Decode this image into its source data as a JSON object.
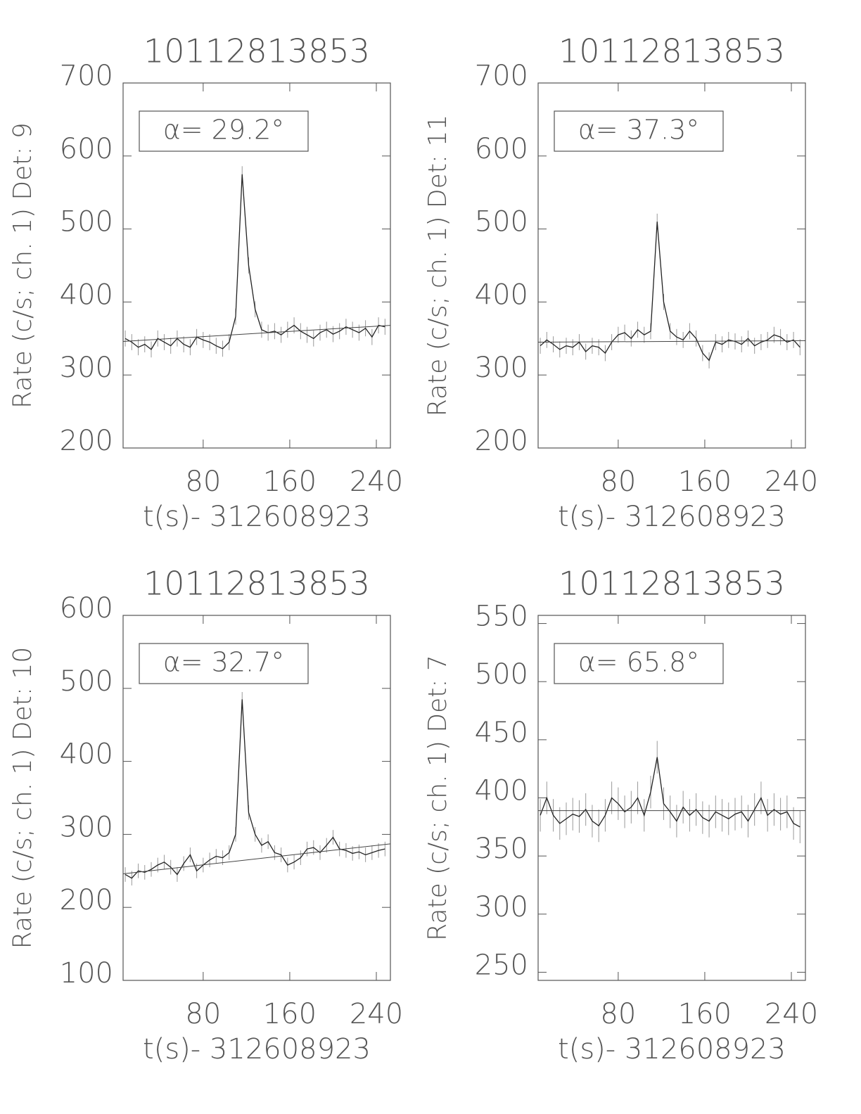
{
  "chart_data": [
    {
      "type": "line",
      "title": "10112813853",
      "ylabel": "Rate (c/s; ch. 1) Det: 9",
      "xlabel": "t(s)- 312608923",
      "annotation": "α= 29.2°",
      "x": [
        8,
        14,
        20,
        26,
        32,
        38,
        44,
        50,
        56,
        62,
        68,
        74,
        80,
        86,
        92,
        98,
        104,
        110,
        116,
        122,
        128,
        134,
        140,
        146,
        152,
        158,
        164,
        170,
        176,
        182,
        188,
        194,
        200,
        206,
        212,
        218,
        224,
        230,
        236,
        242,
        248
      ],
      "values": [
        350,
        345,
        338,
        342,
        335,
        350,
        345,
        340,
        350,
        342,
        338,
        352,
        348,
        345,
        340,
        336,
        345,
        380,
        575,
        450,
        390,
        362,
        358,
        360,
        355,
        362,
        368,
        360,
        355,
        350,
        358,
        362,
        356,
        360,
        366,
        362,
        358,
        364,
        352,
        368,
        366
      ],
      "error": 11,
      "fit": {
        "x": [
          6,
          253
        ],
        "values": [
          346,
          368
        ]
      },
      "color": "#222222",
      "xlim": [
        6,
        253
      ],
      "xticks": [
        80,
        160,
        240
      ],
      "ylim": [
        200,
        700
      ],
      "yticks": [
        200,
        300,
        400,
        500,
        600,
        700
      ]
    },
    {
      "type": "line",
      "title": "10112813853",
      "ylabel": "Rate (c/s; ch. 1) Det: 11",
      "xlabel": "t(s)- 312608923",
      "annotation": "α= 37.3°",
      "x": [
        8,
        14,
        20,
        26,
        32,
        38,
        44,
        50,
        56,
        62,
        68,
        74,
        80,
        86,
        92,
        98,
        104,
        110,
        116,
        122,
        128,
        134,
        140,
        146,
        152,
        158,
        164,
        170,
        176,
        182,
        188,
        194,
        200,
        206,
        212,
        218,
        224,
        230,
        236,
        242,
        248
      ],
      "values": [
        340,
        348,
        342,
        335,
        340,
        338,
        345,
        332,
        340,
        338,
        330,
        345,
        355,
        358,
        350,
        362,
        355,
        360,
        510,
        400,
        360,
        352,
        348,
        360,
        350,
        330,
        320,
        345,
        342,
        348,
        346,
        342,
        350,
        340,
        345,
        348,
        355,
        352,
        345,
        348,
        338
      ],
      "error": 11,
      "fit": {
        "x": [
          6,
          253
        ],
        "values": [
          345,
          347
        ]
      },
      "color": "#222222",
      "xlim": [
        6,
        253
      ],
      "xticks": [
        80,
        160,
        240
      ],
      "ylim": [
        200,
        700
      ],
      "yticks": [
        200,
        300,
        400,
        500,
        600,
        700
      ]
    },
    {
      "type": "line",
      "title": "10112813853",
      "ylabel": "Rate (c/s; ch. 1) Det: 10",
      "xlabel": "t(s)- 312608923",
      "annotation": "α= 32.7°",
      "x": [
        8,
        14,
        20,
        26,
        32,
        38,
        44,
        50,
        56,
        62,
        68,
        74,
        80,
        86,
        92,
        98,
        104,
        110,
        116,
        122,
        128,
        134,
        140,
        146,
        152,
        158,
        164,
        170,
        176,
        182,
        188,
        194,
        200,
        206,
        212,
        218,
        224,
        230,
        236,
        242,
        248
      ],
      "values": [
        245,
        240,
        250,
        248,
        252,
        258,
        262,
        255,
        245,
        260,
        272,
        250,
        258,
        265,
        270,
        268,
        275,
        300,
        485,
        330,
        300,
        285,
        290,
        275,
        272,
        258,
        262,
        268,
        280,
        282,
        275,
        285,
        296,
        280,
        278,
        274,
        276,
        272,
        275,
        278,
        280
      ],
      "error": 10,
      "fit": {
        "x": [
          6,
          253
        ],
        "values": [
          246,
          287
        ]
      },
      "color": "#222222",
      "xlim": [
        6,
        253
      ],
      "xticks": [
        80,
        160,
        240
      ],
      "ylim": [
        100,
        600
      ],
      "yticks": [
        100,
        200,
        300,
        400,
        500,
        600
      ]
    },
    {
      "type": "line",
      "title": "10112813853",
      "ylabel": "Rate (c/s; ch. 1) Det: 7",
      "xlabel": "t(s)- 312608923",
      "annotation": "α= 65.8°",
      "x": [
        8,
        14,
        20,
        26,
        32,
        38,
        44,
        50,
        56,
        62,
        68,
        74,
        80,
        86,
        92,
        98,
        104,
        110,
        116,
        122,
        128,
        134,
        140,
        146,
        152,
        158,
        164,
        170,
        176,
        182,
        188,
        194,
        200,
        206,
        212,
        218,
        224,
        230,
        236,
        242,
        248
      ],
      "values": [
        385,
        400,
        385,
        378,
        382,
        386,
        384,
        390,
        380,
        376,
        385,
        400,
        395,
        388,
        392,
        400,
        385,
        405,
        435,
        395,
        388,
        380,
        392,
        385,
        390,
        383,
        380,
        388,
        385,
        382,
        386,
        388,
        380,
        390,
        400,
        385,
        390,
        386,
        388,
        378,
        375
      ],
      "error": 14,
      "fit": {
        "x": [
          6,
          253
        ],
        "values": [
          389,
          389
        ]
      },
      "color": "#222222",
      "xlim": [
        6,
        253
      ],
      "xticks": [
        80,
        160,
        240
      ],
      "ylim": [
        243,
        557
      ],
      "yticks": [
        250,
        300,
        350,
        400,
        450,
        500,
        550
      ]
    }
  ]
}
